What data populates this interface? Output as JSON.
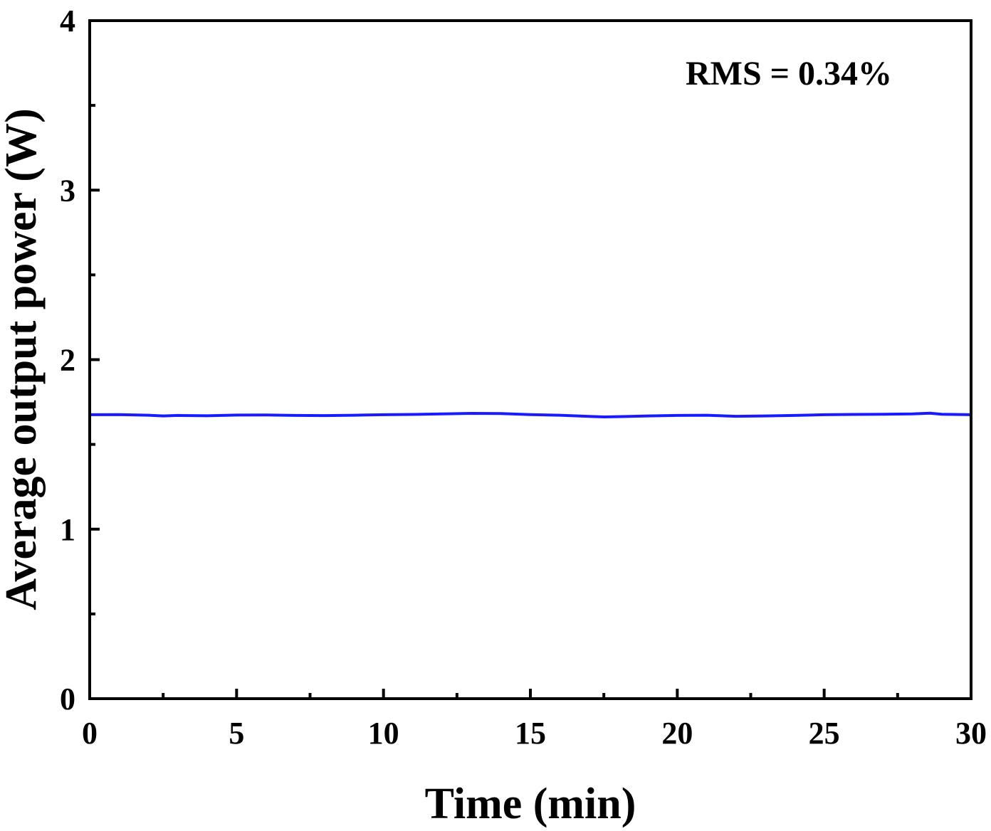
{
  "chart_data": {
    "type": "line",
    "xlabel": "Time (min)",
    "ylabel": "Average output power (W)",
    "xlim": [
      0,
      30
    ],
    "ylim": [
      0,
      4
    ],
    "x_ticks": [
      0,
      5,
      10,
      15,
      20,
      25,
      30
    ],
    "y_ticks": [
      0,
      1,
      2,
      3,
      4
    ],
    "x_minor_step": 2.5,
    "y_minor_step": 0.5,
    "grid": false,
    "annotation": "RMS = 0.34%",
    "series": [
      {
        "color": "#1a1aff",
        "x": [
          0,
          1,
          2,
          2.5,
          3,
          4,
          5,
          6,
          7,
          8,
          9,
          10,
          11,
          12,
          13,
          14,
          15,
          16,
          17,
          17.5,
          18,
          19,
          20,
          21,
          22,
          23,
          24,
          25,
          26,
          27,
          28,
          28.6,
          29,
          30
        ],
        "y": [
          1.675,
          1.676,
          1.672,
          1.668,
          1.671,
          1.669,
          1.673,
          1.674,
          1.671,
          1.67,
          1.672,
          1.675,
          1.677,
          1.68,
          1.683,
          1.682,
          1.676,
          1.672,
          1.665,
          1.662,
          1.664,
          1.668,
          1.671,
          1.672,
          1.666,
          1.668,
          1.671,
          1.675,
          1.677,
          1.678,
          1.68,
          1.684,
          1.678,
          1.675
        ]
      }
    ]
  }
}
